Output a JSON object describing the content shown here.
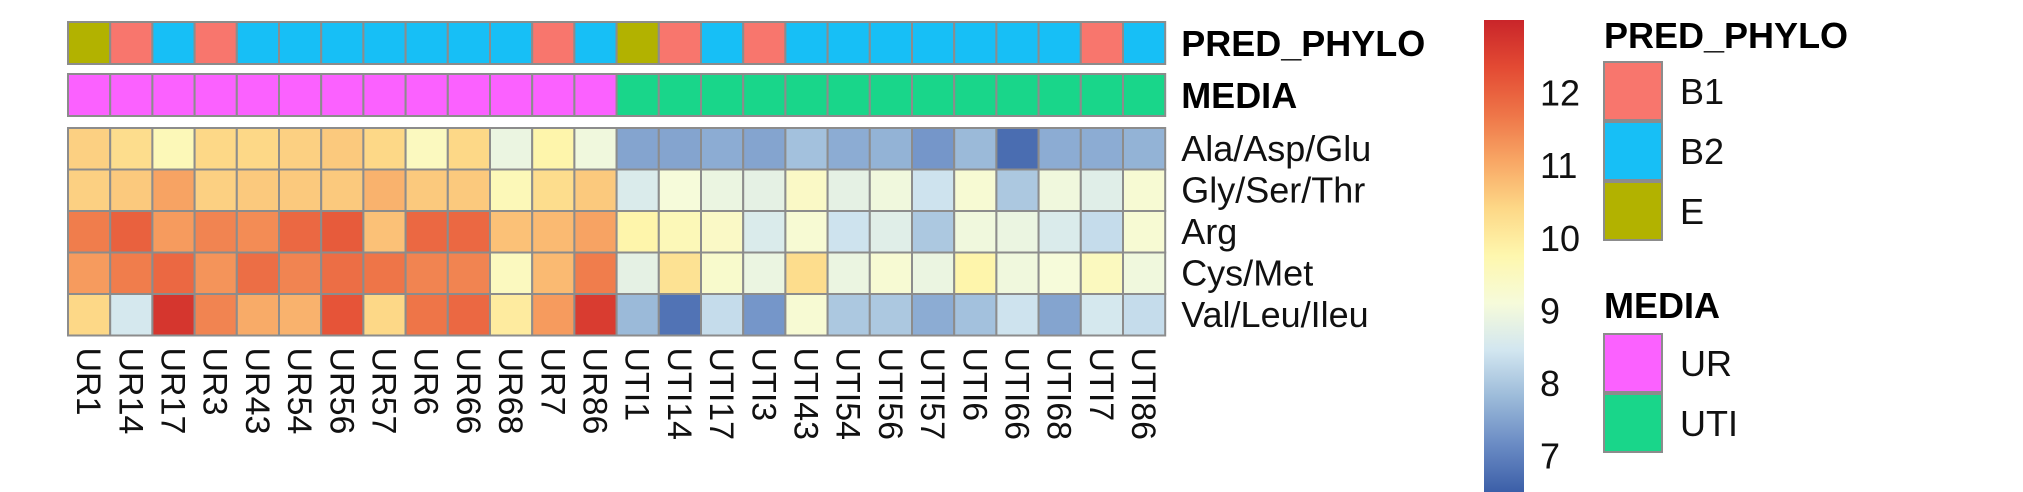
{
  "chart_data": {
    "type": "heatmap",
    "columns": [
      "UR1",
      "UR14",
      "UR17",
      "UR3",
      "UR43",
      "UR54",
      "UR56",
      "UR57",
      "UR6",
      "UR66",
      "UR68",
      "UR7",
      "UR86",
      "UTI1",
      "UTI14",
      "UTI17",
      "UTI3",
      "UTI43",
      "UTI54",
      "UTI56",
      "UTI57",
      "UTI6",
      "UTI66",
      "UTI68",
      "UTI7",
      "UTI86"
    ],
    "rows": [
      "Ala/Asp/Glu",
      "Gly/Ser/Thr",
      "Arg",
      "Cys/Met",
      "Val/Leu/Ileu"
    ],
    "values": [
      [
        10.5,
        10.3,
        9.6,
        10.4,
        10.4,
        10.5,
        10.6,
        10.4,
        9.5,
        10.4,
        8.9,
        9.8,
        9.0,
        7.5,
        7.5,
        7.6,
        7.5,
        7.9,
        7.6,
        7.7,
        7.3,
        7.8,
        6.7,
        7.6,
        7.6,
        7.7
      ],
      [
        10.5,
        10.6,
        11.1,
        10.5,
        10.6,
        10.6,
        10.6,
        10.9,
        10.6,
        10.6,
        9.6,
        10.3,
        10.6,
        8.6,
        9.1,
        8.9,
        8.8,
        9.4,
        8.8,
        9.0,
        8.4,
        9.2,
        8.0,
        9.0,
        8.7,
        9.2
      ],
      [
        11.6,
        12.0,
        11.2,
        11.5,
        11.4,
        11.9,
        12.1,
        10.7,
        11.9,
        11.9,
        10.7,
        10.8,
        11.1,
        9.8,
        9.6,
        9.4,
        8.6,
        9.2,
        8.4,
        8.7,
        8.0,
        9.0,
        8.9,
        8.6,
        8.3,
        9.2
      ],
      [
        11.2,
        11.6,
        11.9,
        11.3,
        11.8,
        11.5,
        11.8,
        11.7,
        11.5,
        11.5,
        9.5,
        10.8,
        11.6,
        8.8,
        10.2,
        9.3,
        8.9,
        10.3,
        8.9,
        9.2,
        8.9,
        9.8,
        9.0,
        9.1,
        9.5,
        9.0
      ],
      [
        10.4,
        8.5,
        12.7,
        11.5,
        11.0,
        10.9,
        12.2,
        10.4,
        11.7,
        11.9,
        10.0,
        11.2,
        12.6,
        7.8,
        6.8,
        8.3,
        7.3,
        9.2,
        8.0,
        8.0,
        7.6,
        7.9,
        8.4,
        7.5,
        8.5,
        8.3
      ]
    ],
    "annotations": {
      "PRED_PHYLO": [
        "E",
        "B1",
        "B2",
        "B1",
        "B2",
        "B2",
        "B2",
        "B2",
        "B2",
        "B2",
        "B2",
        "B1",
        "B2",
        "E",
        "B1",
        "B2",
        "B1",
        "B2",
        "B2",
        "B2",
        "B2",
        "B2",
        "B2",
        "B2",
        "B1",
        "B2"
      ],
      "MEDIA": [
        "UR",
        "UR",
        "UR",
        "UR",
        "UR",
        "UR",
        "UR",
        "UR",
        "UR",
        "UR",
        "UR",
        "UR",
        "UR",
        "UTI",
        "UTI",
        "UTI",
        "UTI",
        "UTI",
        "UTI",
        "UTI",
        "UTI",
        "UTI",
        "UTI",
        "UTI",
        "UTI",
        "UTI"
      ]
    },
    "annotation_colors": {
      "PRED_PHYLO": {
        "B1": "#F8766D",
        "B2": "#17BFF6",
        "E": "#B2B200"
      },
      "MEDIA": {
        "UR": "#FB61FF",
        "UTI": "#19D68A"
      }
    },
    "color_scale": {
      "min": 6.5,
      "max": 13.0,
      "ticks": [
        7,
        8,
        9,
        10,
        11,
        12
      ],
      "palette": [
        "#3C5FA8",
        "#6A8BC4",
        "#9BBAD9",
        "#D2E6F0",
        "#F6FBDA",
        "#FEF7AE",
        "#FDD887",
        "#F8A765",
        "#EE7548",
        "#E34A33",
        "#C9252A"
      ]
    },
    "legends": [
      {
        "title": "PRED_PHYLO",
        "items": [
          "B1",
          "B2",
          "E"
        ]
      },
      {
        "title": "MEDIA",
        "items": [
          "UR",
          "UTI"
        ]
      }
    ],
    "legend_placement": "right",
    "grid": true
  }
}
